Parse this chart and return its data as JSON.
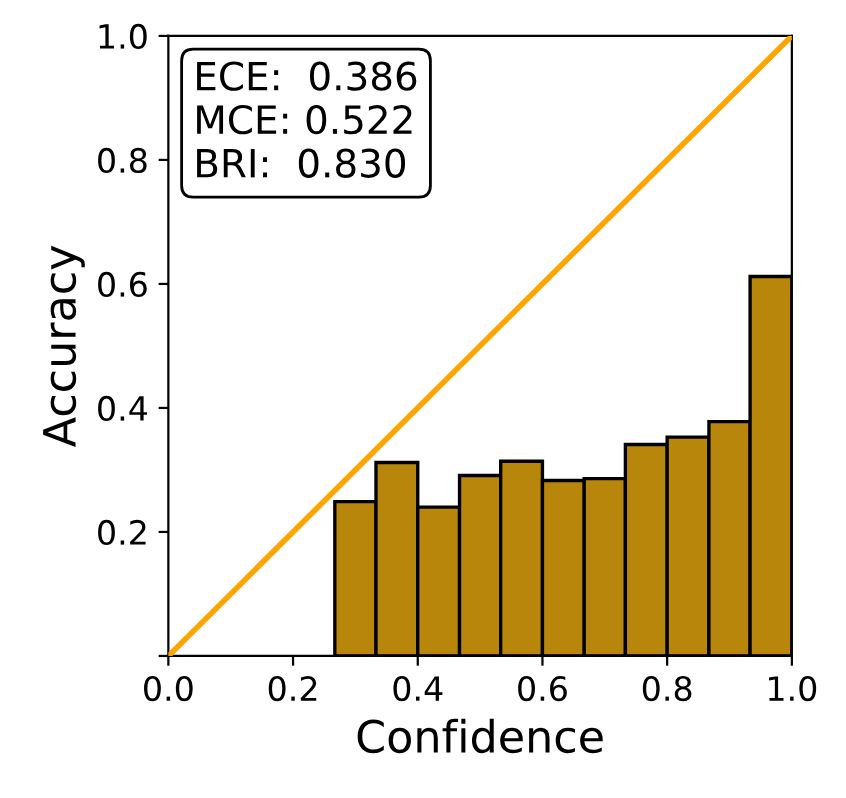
{
  "chart_data": {
    "type": "histogram",
    "xlabel": "Confidence",
    "ylabel": "Accuracy",
    "series": [
      {
        "color": "#b8860b",
        "bins": [
          0.267,
          0.333,
          0.4,
          0.467,
          0.533,
          0.6,
          0.667,
          0.733,
          0.8,
          0.867,
          0.933,
          1.0
        ],
        "values": [
          0.249,
          0.312,
          0.24,
          0.291,
          0.314,
          0.283,
          0.286,
          0.341,
          0.353,
          0.378,
          0.612
        ]
      },
      {
        "type": "line",
        "color": "#ffa500",
        "x": [
          0,
          1
        ],
        "values": [
          0,
          1
        ]
      }
    ],
    "annotations": [
      "ECE:  0.386\nMCE: 0.522\nBRI:  0.830"
    ],
    "xlim": [
      0,
      1
    ],
    "ylim": [
      0,
      1
    ],
    "xticks": [
      {
        "value": 0,
        "label": "0.0"
      },
      {
        "value": 0.2,
        "label": "0.2"
      },
      {
        "value": 0.4,
        "label": "0.4"
      },
      {
        "value": 0.6,
        "label": "0.6"
      },
      {
        "value": 0.8,
        "label": "0.8"
      },
      {
        "value": 1,
        "label": "1.0"
      }
    ],
    "yticks": [
      {
        "value": 0,
        "label": null
      },
      {
        "value": 0.2,
        "label": "0.2"
      },
      {
        "value": 0.4,
        "label": "0.4"
      },
      {
        "value": 0.6,
        "label": "0.6"
      },
      {
        "value": 0.8,
        "label": "0.8"
      },
      {
        "value": 1,
        "label": "1.0"
      }
    ],
    "grid": false,
    "legend": false
  }
}
